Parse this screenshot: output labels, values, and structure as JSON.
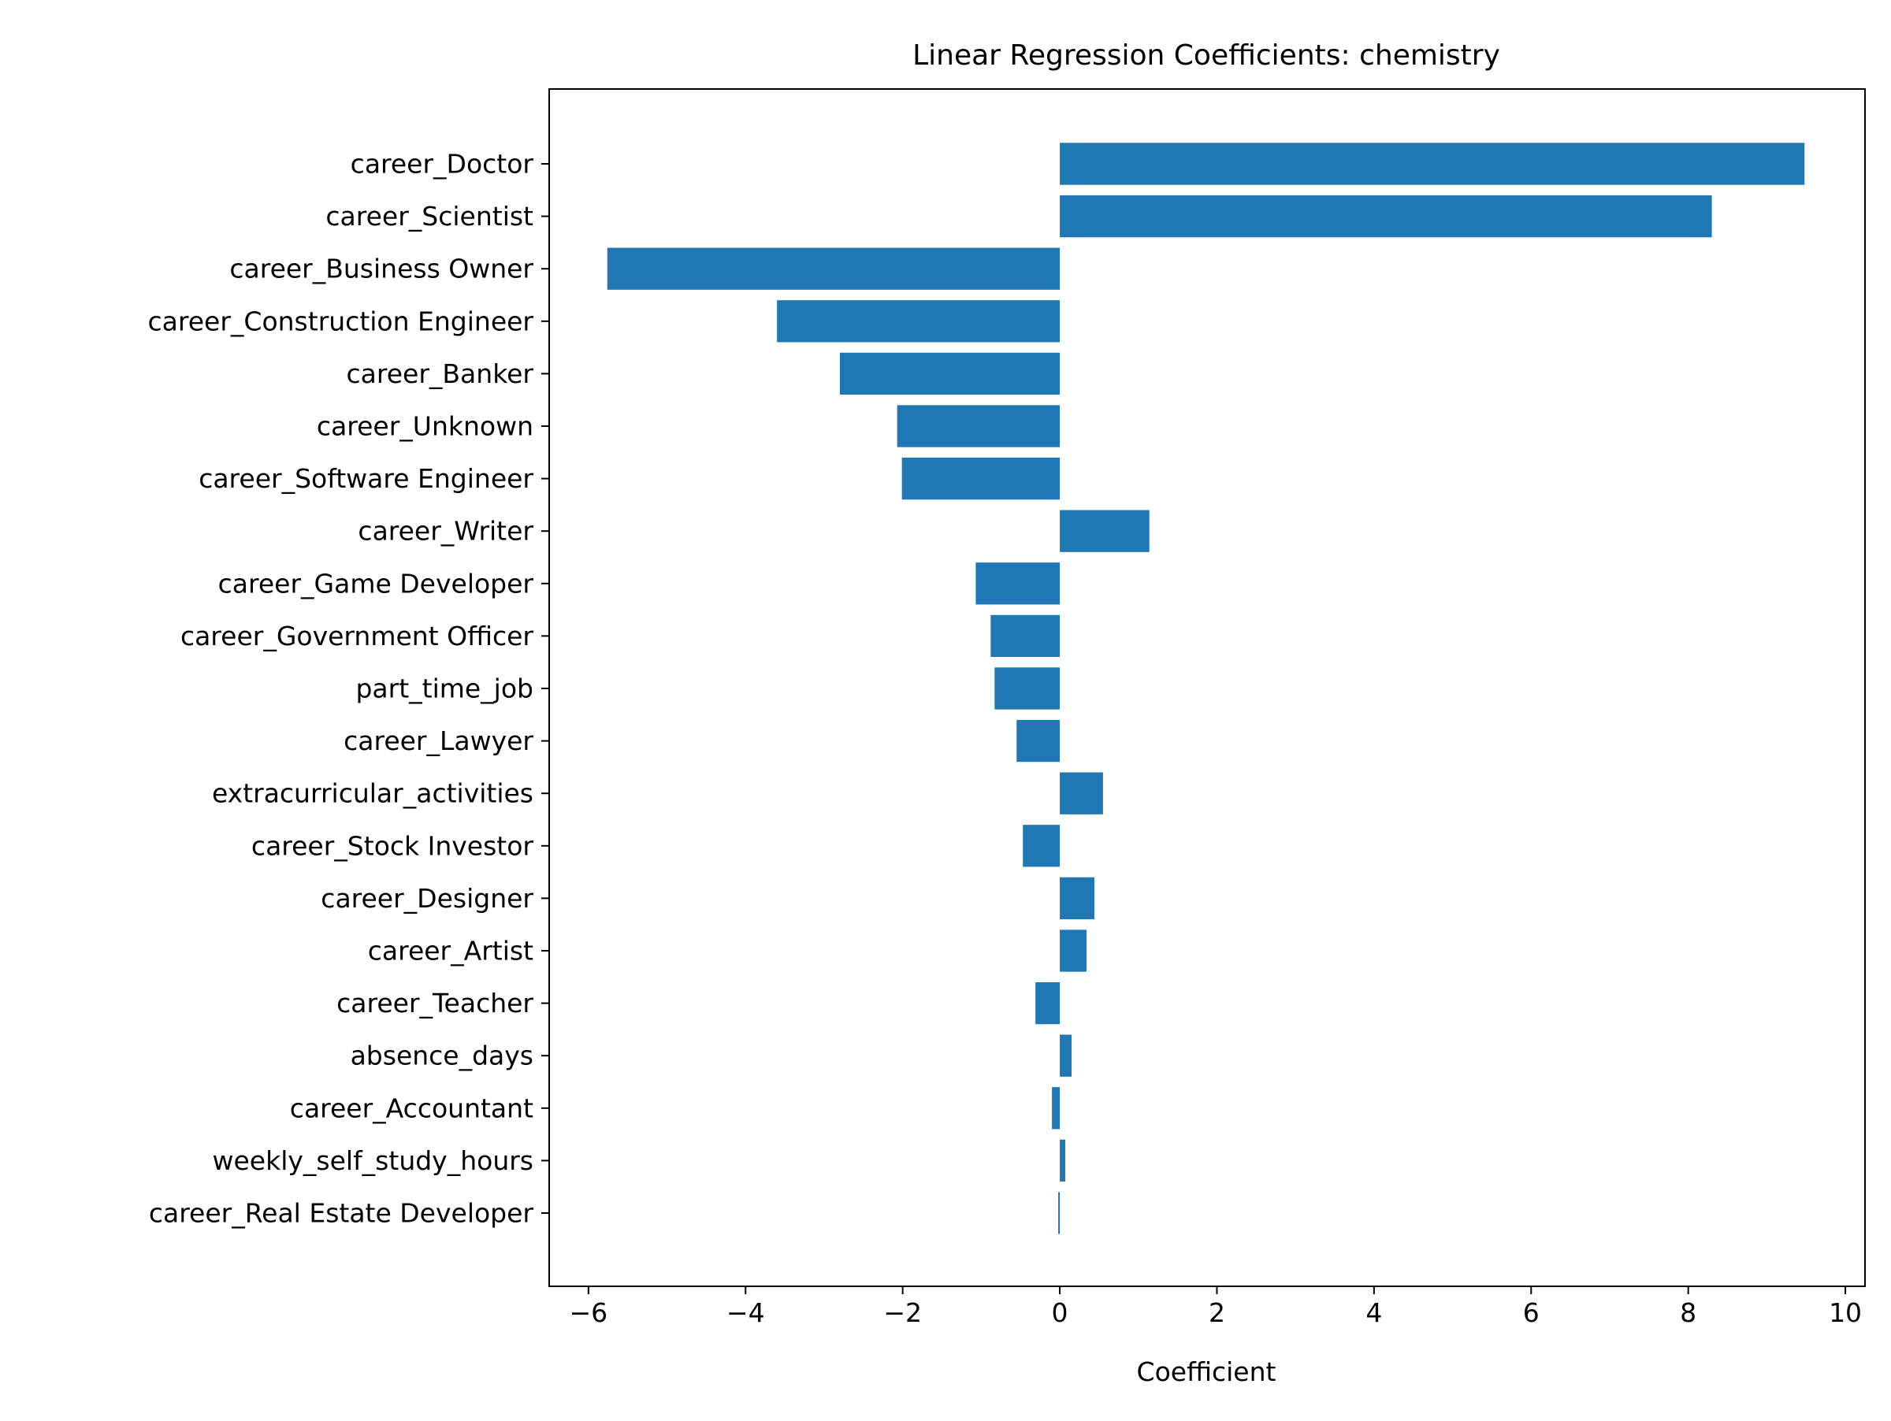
{
  "chart_data": {
    "type": "bar",
    "orientation": "horizontal",
    "title": "Linear Regression Coefficients: chemistry",
    "xlabel": "Coefficient",
    "ylabel": "",
    "xlim": [
      -6.5,
      10.25
    ],
    "xticks": [
      -6,
      -4,
      -2,
      0,
      2,
      4,
      6,
      8,
      10
    ],
    "xtick_labels": [
      "−6",
      "−4",
      "−2",
      "0",
      "2",
      "4",
      "6",
      "8",
      "10"
    ],
    "grid": false,
    "bar_color": "#1f77b4",
    "categories": [
      "career_Doctor",
      "career_Scientist",
      "career_Business Owner",
      "career_Construction Engineer",
      "career_Banker",
      "career_Unknown",
      "career_Software Engineer",
      "career_Writer",
      "career_Game Developer",
      "career_Government Officer",
      "part_time_job",
      "career_Lawyer",
      "extracurricular_activities",
      "career_Stock Investor",
      "career_Designer",
      "career_Artist",
      "career_Teacher",
      "absence_days",
      "career_Accountant",
      "weekly_self_study_hours",
      "career_Real Estate Developer"
    ],
    "values": [
      9.48,
      8.3,
      -5.76,
      -3.6,
      -2.8,
      -2.07,
      -2.01,
      1.14,
      -1.07,
      -0.88,
      -0.83,
      -0.55,
      0.55,
      -0.47,
      0.44,
      0.34,
      -0.31,
      0.15,
      -0.1,
      0.07,
      -0.02
    ]
  }
}
